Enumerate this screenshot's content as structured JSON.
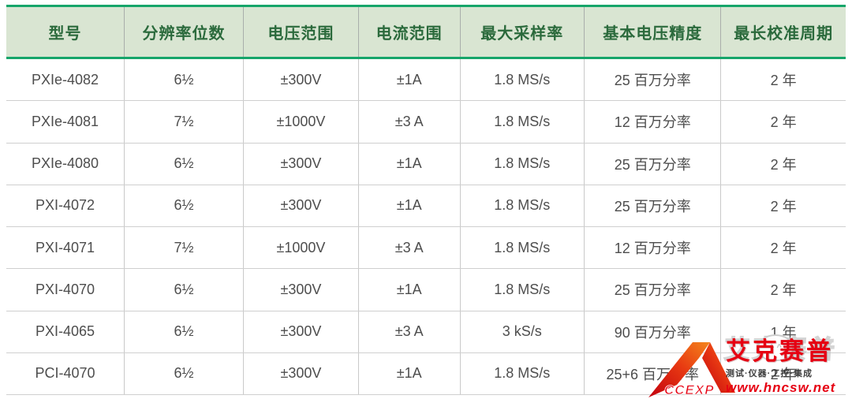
{
  "colors": {
    "accent_green_line": "#16a56a",
    "header_bg": "#d9e5d2",
    "header_text": "#2b6a3c",
    "body_text": "#4d4d4d",
    "grid_line": "#c9c9c9",
    "logo_red": "#e60012",
    "logo_orange": "#f07b1a"
  },
  "table": {
    "columns": [
      {
        "key": "model",
        "label": "型号",
        "width": "14.0%"
      },
      {
        "key": "digits",
        "label": "分辨率位数",
        "width": "14.2%"
      },
      {
        "key": "voltage",
        "label": "电压范围",
        "width": "13.7%"
      },
      {
        "key": "current",
        "label": "电流范围",
        "width": "12.1%"
      },
      {
        "key": "sample",
        "label": "最大采样率",
        "width": "14.8%"
      },
      {
        "key": "accuracy",
        "label": "基本电压精度",
        "width": "16.3%"
      },
      {
        "key": "calibration",
        "label": "最长校准周期",
        "width": "14.9%"
      }
    ],
    "rows": [
      {
        "model": "PXIe-4082",
        "digits": "6½",
        "voltage": "±300V",
        "current": "±1A",
        "sample": "1.8 MS/s",
        "accuracy": "25 百万分率",
        "calibration": "2 年"
      },
      {
        "model": "PXIe-4081",
        "digits": "7½",
        "voltage": "±1000V",
        "current": "±3 A",
        "sample": "1.8 MS/s",
        "accuracy": "12 百万分率",
        "calibration": "2 年"
      },
      {
        "model": "PXIe-4080",
        "digits": "6½",
        "voltage": "±300V",
        "current": "±1A",
        "sample": "1.8 MS/s",
        "accuracy": "25 百万分率",
        "calibration": "2 年"
      },
      {
        "model": "PXI-4072",
        "digits": "6½",
        "voltage": "±300V",
        "current": "±1A",
        "sample": "1.8 MS/s",
        "accuracy": "25 百万分率",
        "calibration": "2 年"
      },
      {
        "model": "PXI-4071",
        "digits": "7½",
        "voltage": "±1000V",
        "current": "±3 A",
        "sample": "1.8 MS/s",
        "accuracy": "12 百万分率",
        "calibration": "2 年"
      },
      {
        "model": "PXI-4070",
        "digits": "6½",
        "voltage": "±300V",
        "current": "±1A",
        "sample": "1.8 MS/s",
        "accuracy": "25 百万分率",
        "calibration": "2 年"
      },
      {
        "model": "PXI-4065",
        "digits": "6½",
        "voltage": "±300V",
        "current": "±3 A",
        "sample": "3 kS/s",
        "accuracy": "90 百万分率",
        "calibration": "1 年"
      },
      {
        "model": "PCI-4070",
        "digits": "6½",
        "voltage": "±300V",
        "current": "±1A",
        "sample": "1.8 MS/s",
        "accuracy": "25+6 百万分率",
        "calibration": "2 年"
      }
    ]
  },
  "logo": {
    "monogram": "CCEXP",
    "brand": "艾克赛普",
    "tagline": "测试·仪器·工控·集成",
    "url": "www.hncsw.net",
    "watermark": "艾克赛普",
    "blob_eyes": "^ ^"
  }
}
